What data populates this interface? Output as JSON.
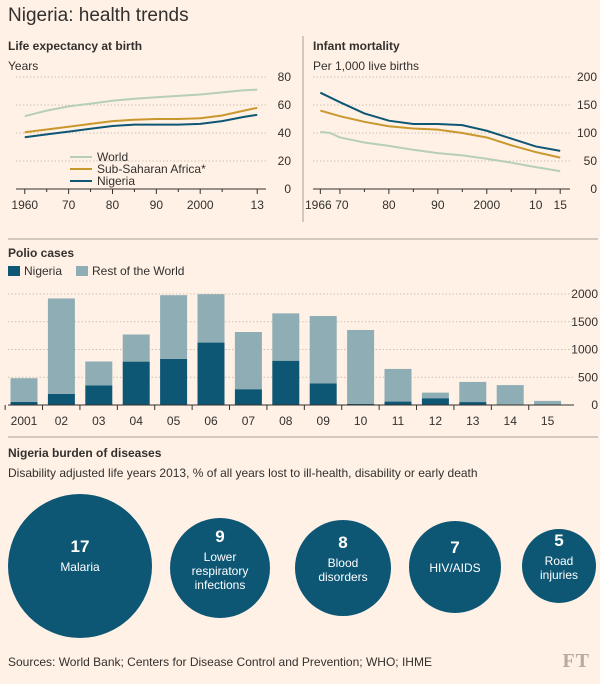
{
  "title": "Nigeria: health trends",
  "source": "Sources: World Bank; Centers for Disease Control and Prevention; WHO; IHME",
  "logo": "FT",
  "colors": {
    "background": "#fff1e5",
    "world_line": "#b7cfb4",
    "ssa_line": "#c9982d",
    "nigeria": "#0d5775",
    "rest_of_world_bar": "#8fadb4",
    "bubble": "#0d5775",
    "grid": "#ccc1b7",
    "separator": "#a79f98"
  },
  "chart_data": [
    {
      "type": "line",
      "title": "Life expectancy at birth",
      "unit_label": "Years",
      "x_tick_labels": [
        "1960",
        "70",
        "80",
        "90",
        "2000",
        "13"
      ],
      "y_tick_labels": [
        "80",
        "60",
        "40",
        "20",
        "0"
      ],
      "xlim": [
        1958,
        2015
      ],
      "ylim": [
        0,
        80
      ],
      "grid": true,
      "legend_position": "bottom-left",
      "series": [
        {
          "name": "World",
          "color": "#b7cfb4",
          "x": [
            1960,
            1965,
            1970,
            1975,
            1980,
            1985,
            1990,
            1995,
            2000,
            2005,
            2010,
            2013
          ],
          "y": [
            52,
            56,
            59,
            61,
            63,
            64.5,
            65.5,
            66.5,
            67.5,
            69,
            70.5,
            71
          ]
        },
        {
          "name": "Sub-Saharan Africa*",
          "color": "#c9982d",
          "x": [
            1960,
            1965,
            1970,
            1975,
            1980,
            1985,
            1990,
            1995,
            2000,
            2005,
            2010,
            2013
          ],
          "y": [
            40.5,
            42.5,
            44.5,
            46.5,
            48.5,
            49.5,
            50,
            50,
            50.5,
            52.5,
            56,
            58
          ]
        },
        {
          "name": "Nigeria",
          "color": "#0d5775",
          "x": [
            1960,
            1965,
            1970,
            1975,
            1980,
            1985,
            1990,
            1995,
            2000,
            2005,
            2010,
            2013
          ],
          "y": [
            37,
            39,
            41,
            43,
            45,
            46,
            46,
            46,
            46.5,
            48.5,
            51.5,
            53
          ]
        }
      ]
    },
    {
      "type": "line",
      "title": "Infant mortality",
      "unit_label": "Per 1,000 live births",
      "x_tick_labels": [
        "1966",
        "70",
        "80",
        "90",
        "2000",
        "10",
        "15"
      ],
      "y_tick_labels": [
        "200",
        "150",
        "100",
        "50",
        "0"
      ],
      "xlim": [
        1964.5,
        2017
      ],
      "ylim": [
        0,
        200
      ],
      "grid": true,
      "series": [
        {
          "name": "Nigeria",
          "color": "#0d5775",
          "x": [
            1966,
            1970,
            1975,
            1980,
            1985,
            1990,
            1995,
            2000,
            2005,
            2010,
            2015
          ],
          "y": [
            172,
            155,
            135,
            122,
            116,
            116,
            114,
            104,
            90,
            76,
            68
          ]
        },
        {
          "name": "Sub-Saharan Africa*",
          "color": "#c9982d",
          "x": [
            1966,
            1970,
            1975,
            1980,
            1985,
            1990,
            1995,
            2000,
            2005,
            2010,
            2015
          ],
          "y": [
            140,
            130,
            120,
            112,
            108,
            106,
            100,
            92,
            78,
            66,
            56
          ]
        },
        {
          "name": "World",
          "color": "#b7cfb4",
          "x": [
            1966,
            1968,
            1970,
            1975,
            1980,
            1985,
            1990,
            1995,
            2000,
            2005,
            2010,
            2015
          ],
          "y": [
            102,
            100,
            92,
            83,
            77,
            70,
            64,
            60,
            54,
            47,
            39,
            32
          ]
        }
      ]
    },
    {
      "type": "bar",
      "title": "Polio cases",
      "stacked": true,
      "categories": [
        "2001",
        "02",
        "03",
        "04",
        "05",
        "06",
        "07",
        "08",
        "09",
        "10",
        "11",
        "12",
        "13",
        "14",
        "15"
      ],
      "y_tick_labels": [
        "2000",
        "1500",
        "1000",
        "500",
        "0"
      ],
      "ylim": [
        0,
        2000
      ],
      "grid": true,
      "legend_position": "top-left",
      "series": [
        {
          "name": "Nigeria",
          "color": "#0d5775",
          "values": [
            56,
            202,
            355,
            782,
            830,
            1125,
            285,
            798,
            388,
            21,
            62,
            122,
            53,
            6,
            0
          ]
        },
        {
          "name": "Rest of the World",
          "color": "#8fadb4",
          "values": [
            427,
            1718,
            429,
            488,
            1149,
            872,
            1030,
            853,
            1216,
            1331,
            588,
            101,
            363,
            353,
            74
          ]
        }
      ]
    },
    {
      "type": "bubble",
      "title": "Nigeria burden of diseases",
      "subtitle": "Disability adjusted life years 2013, % of all years lost to ill-health, disability or early death",
      "items": [
        {
          "value": "17",
          "label_lines": [
            "Malaria"
          ]
        },
        {
          "value": "9",
          "label_lines": [
            "Lower",
            "respiratory",
            "infections"
          ]
        },
        {
          "value": "8",
          "label_lines": [
            "Blood",
            "disorders"
          ]
        },
        {
          "value": "7",
          "label_lines": [
            "HIV/AIDS"
          ]
        },
        {
          "value": "5",
          "label_lines": [
            "Road",
            "injuries"
          ]
        }
      ]
    }
  ]
}
